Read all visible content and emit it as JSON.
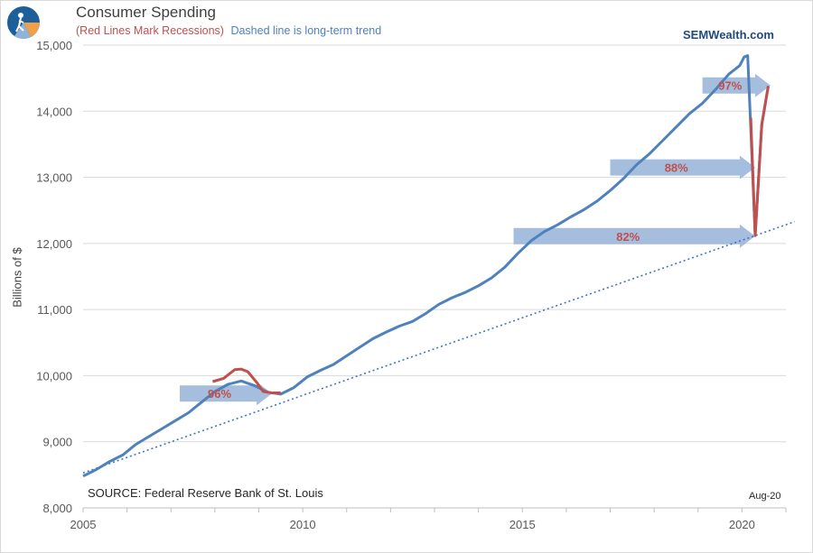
{
  "header": {
    "title": "Consumer Spending",
    "subtitle_red": "(Red Lines Mark Recessions)",
    "subtitle_blue": "Dashed line is long-term trend",
    "brand": "SEMWealth.com"
  },
  "footer": {
    "source": "SOURCE:  Federal Reserve Bank of St. Louis",
    "date_label": "Aug-20"
  },
  "colors": {
    "series": "#4f81bd",
    "recession": "#c0504d",
    "trend": "#4472c4",
    "arrow": "#95b3d7",
    "grid": "#d9d9d9",
    "axis_text": "#595959"
  },
  "chart_data": {
    "type": "line",
    "title": "Consumer Spending",
    "xlabel": "",
    "ylabel": "Billions of $",
    "xlim": [
      2005,
      2021
    ],
    "ylim": [
      8000,
      15000
    ],
    "x_ticks": [
      2005,
      2010,
      2015,
      2020
    ],
    "x_tick_labels": [
      "2005",
      "2010",
      "2015",
      "2020"
    ],
    "y_ticks": [
      8000,
      9000,
      10000,
      11000,
      12000,
      13000,
      14000,
      15000
    ],
    "y_tick_labels": [
      "8,000",
      "9,000",
      "10,000",
      "11,000",
      "12,000",
      "13,000",
      "14,000",
      "15,000"
    ],
    "grid": "horizontal",
    "series": [
      {
        "role": "spending",
        "points": [
          [
            2005.0,
            8480
          ],
          [
            2005.3,
            8580
          ],
          [
            2005.6,
            8700
          ],
          [
            2005.9,
            8800
          ],
          [
            2006.2,
            8960
          ],
          [
            2006.5,
            9080
          ],
          [
            2006.8,
            9200
          ],
          [
            2007.1,
            9320
          ],
          [
            2007.4,
            9440
          ],
          [
            2007.7,
            9600
          ],
          [
            2008.0,
            9760
          ],
          [
            2008.3,
            9870
          ],
          [
            2008.6,
            9920
          ],
          [
            2008.9,
            9850
          ],
          [
            2009.2,
            9750
          ],
          [
            2009.5,
            9720
          ],
          [
            2009.8,
            9820
          ],
          [
            2010.1,
            9980
          ],
          [
            2010.4,
            10080
          ],
          [
            2010.7,
            10170
          ],
          [
            2011.0,
            10300
          ],
          [
            2011.3,
            10430
          ],
          [
            2011.6,
            10560
          ],
          [
            2011.9,
            10660
          ],
          [
            2012.2,
            10750
          ],
          [
            2012.5,
            10820
          ],
          [
            2012.8,
            10940
          ],
          [
            2013.1,
            11080
          ],
          [
            2013.4,
            11180
          ],
          [
            2013.7,
            11260
          ],
          [
            2014.0,
            11360
          ],
          [
            2014.3,
            11480
          ],
          [
            2014.6,
            11640
          ],
          [
            2014.9,
            11850
          ],
          [
            2015.2,
            12040
          ],
          [
            2015.5,
            12180
          ],
          [
            2015.8,
            12280
          ],
          [
            2016.1,
            12400
          ],
          [
            2016.4,
            12510
          ],
          [
            2016.7,
            12640
          ],
          [
            2017.0,
            12800
          ],
          [
            2017.3,
            12980
          ],
          [
            2017.6,
            13190
          ],
          [
            2017.9,
            13360
          ],
          [
            2018.2,
            13560
          ],
          [
            2018.5,
            13760
          ],
          [
            2018.8,
            13960
          ],
          [
            2019.1,
            14120
          ],
          [
            2019.4,
            14330
          ],
          [
            2019.7,
            14560
          ],
          [
            2019.95,
            14690
          ],
          [
            2020.05,
            14820
          ],
          [
            2020.13,
            14840
          ],
          [
            2020.2,
            13750
          ],
          [
            2020.3,
            12120
          ],
          [
            2020.45,
            13800
          ],
          [
            2020.6,
            14380
          ]
        ]
      },
      {
        "role": "recession",
        "segments": [
          [
            [
              2007.95,
              9910
            ],
            [
              2008.2,
              9960
            ],
            [
              2008.45,
              10090
            ],
            [
              2008.6,
              10100
            ],
            [
              2008.75,
              10060
            ],
            [
              2008.95,
              9900
            ],
            [
              2009.1,
              9760
            ],
            [
              2009.3,
              9740
            ],
            [
              2009.5,
              9740
            ]
          ],
          [
            [
              2020.2,
              13900
            ],
            [
              2020.3,
              12120
            ],
            [
              2020.45,
              13800
            ],
            [
              2020.6,
              14380
            ]
          ]
        ]
      },
      {
        "role": "trend",
        "style": "dotted",
        "points": [
          [
            2005.0,
            8530
          ],
          [
            2021.2,
            12330
          ]
        ]
      }
    ],
    "annotations": [
      {
        "label": "96%",
        "x_start": 2007.2,
        "x_end": 2009.3,
        "y": 9730
      },
      {
        "label": "82%",
        "x_start": 2014.8,
        "x_end": 2020.3,
        "y": 12110
      },
      {
        "label": "88%",
        "x_start": 2017.0,
        "x_end": 2020.3,
        "y": 13150
      },
      {
        "label": "97%",
        "x_start": 2019.1,
        "x_end": 2020.65,
        "y": 14390
      }
    ]
  }
}
